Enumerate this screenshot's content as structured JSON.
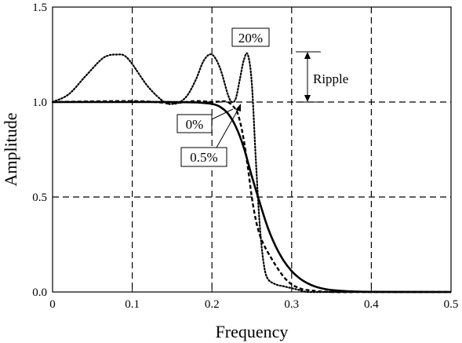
{
  "chart_data": {
    "type": "line",
    "title": "",
    "xlabel": "Frequency",
    "ylabel": "Amplitude",
    "xlim": [
      0,
      0.5
    ],
    "ylim": [
      0,
      1.5
    ],
    "xticks": [
      0,
      0.1,
      0.2,
      0.3,
      0.4,
      0.5
    ],
    "xtick_labels": [
      "0",
      "0.1",
      "0.2",
      "0.3",
      "0.4",
      "0.5"
    ],
    "yticks": [
      0,
      0.5,
      1.0,
      1.5
    ],
    "ytick_labels": [
      "0.0",
      "0.5",
      "1.0",
      "1.5"
    ],
    "grid": "dashed",
    "series": [
      {
        "label": "0%",
        "style": "solid",
        "x": [
          0,
          0.1,
          0.15,
          0.18,
          0.2,
          0.21,
          0.22,
          0.23,
          0.24,
          0.25,
          0.26,
          0.27,
          0.28,
          0.29,
          0.3,
          0.31,
          0.32,
          0.33,
          0.34,
          0.35,
          0.37,
          0.4,
          0.5
        ],
        "y": [
          1.0,
          1.0,
          1.0,
          0.998,
          0.99,
          0.975,
          0.94,
          0.87,
          0.76,
          0.61,
          0.47,
          0.34,
          0.24,
          0.165,
          0.11,
          0.072,
          0.046,
          0.028,
          0.017,
          0.01,
          0.004,
          0.001,
          0.0
        ]
      },
      {
        "label": "0.5%",
        "style": "dashed",
        "x": [
          0,
          0.1,
          0.15,
          0.18,
          0.2,
          0.21,
          0.22,
          0.23,
          0.235,
          0.24,
          0.245,
          0.25,
          0.255,
          0.26,
          0.265,
          0.27,
          0.28,
          0.29,
          0.3,
          0.31,
          0.32,
          0.35,
          0.4,
          0.5
        ],
        "y": [
          1.0,
          1.005,
          0.995,
          1.005,
          1.0,
          1.003,
          1.0,
          0.96,
          0.9,
          0.8,
          0.66,
          0.5,
          0.38,
          0.3,
          0.25,
          0.21,
          0.14,
          0.08,
          0.04,
          0.02,
          0.01,
          0.0,
          0.0,
          0.0
        ]
      },
      {
        "label": "20%",
        "style": "dotted",
        "x": [
          0,
          0.02,
          0.04,
          0.06,
          0.07,
          0.08,
          0.09,
          0.1,
          0.12,
          0.14,
          0.15,
          0.16,
          0.17,
          0.18,
          0.19,
          0.2,
          0.21,
          0.22,
          0.225,
          0.23,
          0.235,
          0.24,
          0.245,
          0.25,
          0.255,
          0.26,
          0.265,
          0.27,
          0.28,
          0.29,
          0.3,
          0.31,
          0.32,
          0.35,
          0.4,
          0.5
        ],
        "y": [
          1.0,
          1.04,
          1.13,
          1.22,
          1.245,
          1.25,
          1.245,
          1.2,
          1.08,
          1.0,
          0.99,
          1.0,
          1.04,
          1.12,
          1.22,
          1.25,
          1.18,
          1.04,
          1.0,
          1.02,
          1.12,
          1.22,
          1.25,
          1.1,
          0.7,
          0.35,
          0.15,
          0.07,
          0.04,
          0.03,
          0.02,
          0.01,
          0.0,
          0.0,
          0.0,
          0.0
        ]
      }
    ],
    "annotations": {
      "ripple": "Ripple",
      "label_20": "20%",
      "label_0": "0%",
      "label_05": "0.5%"
    }
  }
}
